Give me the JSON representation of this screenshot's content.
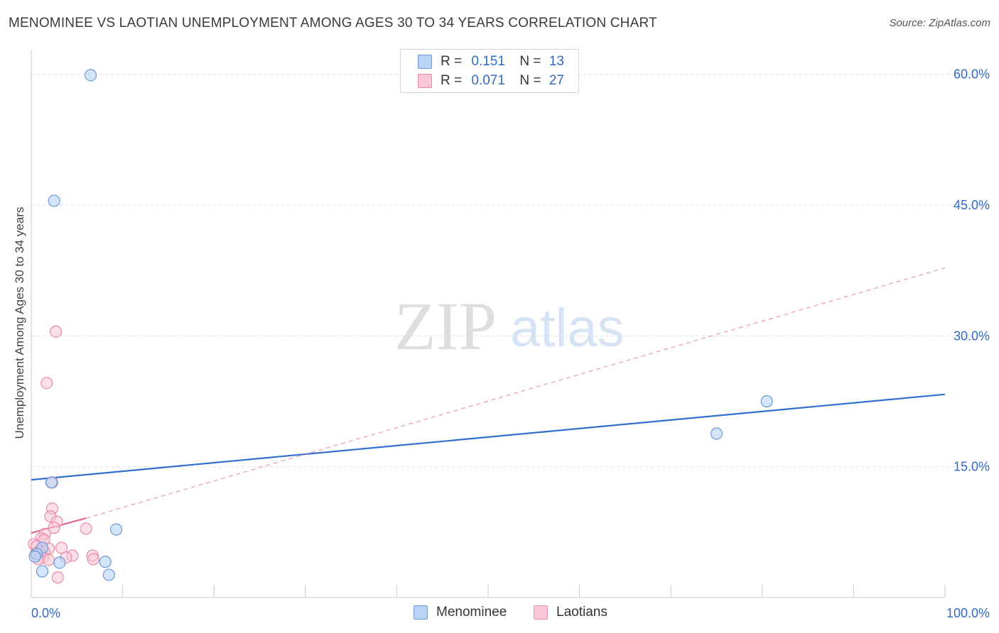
{
  "title": "MENOMINEE VS LAOTIAN UNEMPLOYMENT AMONG AGES 30 TO 34 YEARS CORRELATION CHART",
  "source": "Source: ZipAtlas.com",
  "watermark": {
    "zip": "ZIP",
    "atlas": "atlas"
  },
  "legend": {
    "rows": [
      {
        "r_label": "R =",
        "r_value": "0.151",
        "n_label": "N =",
        "n_value": "13"
      },
      {
        "r_label": "R =",
        "r_value": "0.071",
        "n_label": "N =",
        "n_value": "27"
      }
    ]
  },
  "bottom_legend": {
    "menominee": "Menominee",
    "laotians": "Laotians"
  },
  "colors": {
    "blue_fill": "#b8d3f5",
    "blue_stroke": "#6a9ad8",
    "blue_line": "#2f6fcf",
    "pink_fill": "#f8c6d5",
    "pink_stroke": "#e88aa8",
    "pink_line": "#e06690",
    "grid": "#dddddd",
    "axis_text": "#2f6bc7"
  },
  "chart_data": {
    "type": "scatter",
    "title": "MENOMINEE VS LAOTIAN UNEMPLOYMENT AMONG AGES 30 TO 34 YEARS CORRELATION CHART",
    "xlabel": "",
    "ylabel": "Unemployment Among Ages 30 to 34 years",
    "xlim": [
      0,
      100
    ],
    "ylim": [
      0,
      62.5
    ],
    "x_tick_labels": [
      "0.0%",
      "100.0%"
    ],
    "y_ticks": [
      15,
      30,
      45,
      60
    ],
    "y_tick_labels": [
      "15.0%",
      "30.0%",
      "45.0%",
      "60.0%"
    ],
    "series": [
      {
        "name": "Menominee",
        "color": "#b8d3f5",
        "points": [
          [
            6.5,
            59.9
          ],
          [
            2.5,
            45.5
          ],
          [
            2.2,
            13.2
          ],
          [
            9.3,
            7.8
          ],
          [
            1.2,
            5.7
          ],
          [
            0.6,
            5.0
          ],
          [
            0.4,
            4.7
          ],
          [
            3.1,
            4.0
          ],
          [
            8.1,
            4.1
          ],
          [
            1.2,
            3.0
          ],
          [
            8.5,
            2.6
          ],
          [
            75.0,
            18.8
          ],
          [
            80.5,
            22.5
          ]
        ],
        "trend": {
          "x0": 0,
          "y0": 13.5,
          "x1": 100,
          "y1": 23.3
        }
      },
      {
        "name": "Laotians",
        "color": "#f8c6d5",
        "points": [
          [
            2.7,
            30.5
          ],
          [
            1.7,
            24.6
          ],
          [
            2.3,
            13.2
          ],
          [
            2.3,
            10.2
          ],
          [
            2.1,
            9.3
          ],
          [
            2.8,
            8.7
          ],
          [
            2.5,
            8.0
          ],
          [
            6.0,
            7.9
          ],
          [
            1.5,
            7.3
          ],
          [
            1.1,
            6.8
          ],
          [
            1.4,
            6.6
          ],
          [
            0.3,
            6.1
          ],
          [
            0.6,
            5.9
          ],
          [
            3.3,
            5.7
          ],
          [
            1.9,
            5.6
          ],
          [
            0.9,
            5.3
          ],
          [
            1.4,
            5.2
          ],
          [
            0.5,
            5.0
          ],
          [
            0.9,
            4.9
          ],
          [
            4.5,
            4.8
          ],
          [
            6.7,
            4.8
          ],
          [
            1.3,
            4.6
          ],
          [
            0.8,
            4.4
          ],
          [
            3.8,
            4.6
          ],
          [
            6.8,
            4.4
          ],
          [
            1.9,
            4.3
          ],
          [
            2.9,
            2.3
          ]
        ],
        "trend_solid": {
          "x0": 0,
          "y0": 7.4,
          "x1": 6.0,
          "y1": 9.1
        },
        "trend_dashed": {
          "x0": 6.0,
          "y0": 9.1,
          "x1": 100,
          "y1": 37.8
        }
      }
    ]
  }
}
